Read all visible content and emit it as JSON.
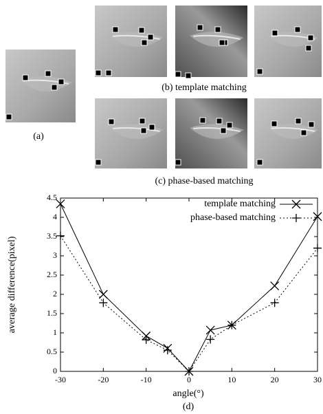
{
  "panels": {
    "a": {
      "caption": "(a)"
    },
    "b": {
      "caption": "(b) template matching"
    },
    "c": {
      "caption": "(c) phase-based matching"
    }
  },
  "chart_data": {
    "type": "line",
    "caption": "(d)",
    "x_label": "angle(°)",
    "y_label": "average difference(pixel)",
    "xlim": [
      -30,
      30
    ],
    "xticks": [
      -30,
      -20,
      -10,
      0,
      10,
      20,
      30
    ],
    "ylim": [
      0,
      4.5
    ],
    "yticks": [
      0,
      0.5,
      1,
      1.5,
      2,
      2.5,
      3,
      3.5,
      4,
      4.5
    ],
    "x": [
      -30,
      -20,
      -10,
      -5,
      0,
      5,
      10,
      20,
      30
    ],
    "legend": "top-right",
    "series": [
      {
        "name": "template matching",
        "color": "#000000",
        "line_style": "solid",
        "marker": "x",
        "values": [
          4.35,
          2.0,
          0.92,
          0.6,
          0.0,
          1.07,
          1.2,
          2.22,
          4.02
        ]
      },
      {
        "name": "phase-based matching",
        "color": "#000000",
        "line_style": "dotted",
        "marker": "+",
        "values": [
          3.52,
          1.78,
          0.82,
          0.55,
          0.0,
          0.83,
          1.2,
          1.78,
          3.2
        ]
      }
    ]
  }
}
